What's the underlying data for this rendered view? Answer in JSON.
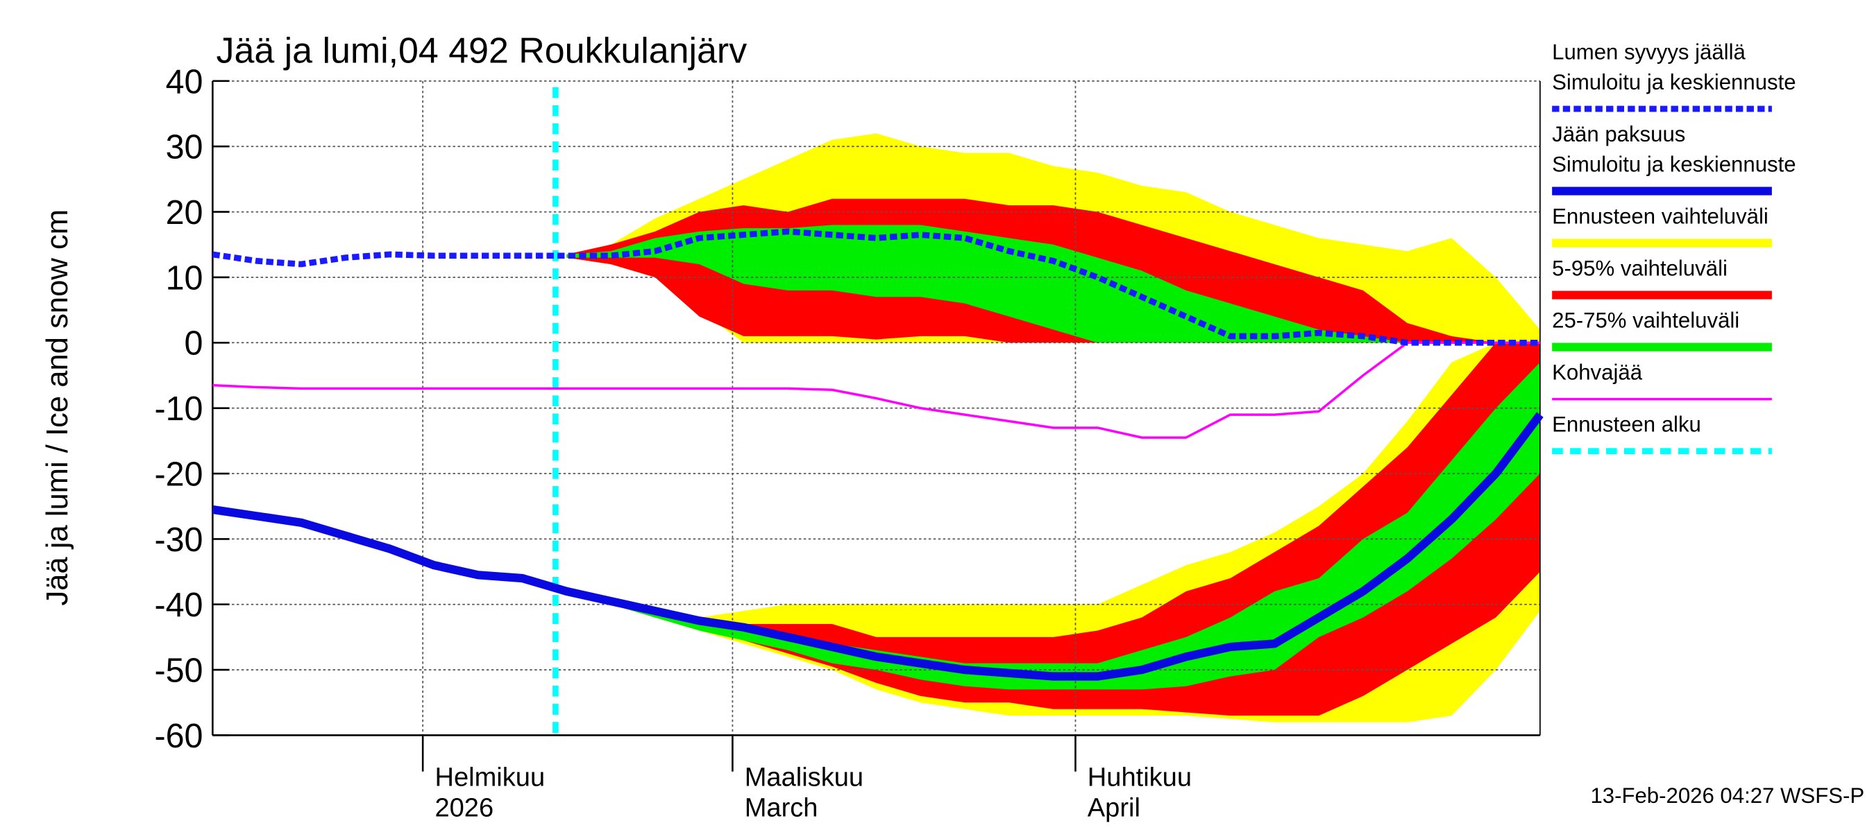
{
  "chart_data": {
    "type": "line",
    "title": "Jää ja lumi,04 492 Roukkulanjärv",
    "ylabel": "Jää ja lumi / Ice and snow    cm",
    "timestamp": "13-Feb-2026 04:27 WSFS-P",
    "categories": [
      null,
      null,
      null,
      null,
      null,
      null,
      null,
      null,
      null,
      null,
      null,
      null,
      null,
      null,
      null,
      null,
      null,
      null,
      null,
      null,
      null,
      null,
      null,
      null,
      null,
      null,
      null,
      null,
      null,
      null,
      null
    ],
    "xticks": [
      {
        "value": 4.75,
        "label": "Helmikuu\n2026"
      },
      {
        "value": 11.75,
        "label": "Maaliskuu\nMarch"
      },
      {
        "value": 19.5,
        "label": "Huhtikuu\nApril"
      }
    ],
    "ylim": [
      -60,
      40
    ],
    "yticks": [
      -60,
      -50,
      -40,
      -30,
      -20,
      -10,
      0,
      10,
      20,
      30,
      40
    ],
    "grid": true,
    "series": [
      {
        "name": "Lumen syvyys jäällä\nSimuloitu ja keskiennuste",
        "color": "#1a1aff",
        "style": "dashed",
        "values": [
          13.5,
          12.5,
          12,
          13,
          13.5,
          13.3,
          13.3,
          13.3,
          13.3,
          13.3,
          14,
          16,
          16.5,
          17,
          16.5,
          16,
          16.5,
          16,
          14,
          12.5,
          10,
          7,
          4,
          1,
          1,
          1.5,
          1,
          0,
          0,
          0,
          0
        ]
      },
      {
        "name": "Jään paksuus\nSimuloitu ja keskiennuste",
        "color": "#0a0ae0",
        "style": "solid",
        "values": [
          -25.5,
          -26.5,
          -27.5,
          -29.5,
          -31.5,
          -34,
          -35.5,
          -36,
          -38,
          -39.5,
          -41,
          -42.5,
          -43.5,
          -45,
          -46.5,
          -48,
          -49,
          -50,
          -50.5,
          -51,
          -51,
          -50,
          -48,
          -46.5,
          -46,
          -42,
          -38,
          -33,
          -27,
          -20,
          -11
        ]
      },
      {
        "name": "Kohvajää",
        "color": "#ff00ff",
        "style": "thin",
        "values": [
          -6.5,
          -6.8,
          -7,
          -7,
          -7,
          -7,
          -7,
          -7,
          -7,
          -7,
          -7,
          -7,
          -7,
          -7,
          -7.2,
          -8.5,
          -10,
          -11,
          -12,
          -13,
          -13,
          -14.5,
          -14.5,
          -11,
          -11,
          -10.5,
          -5,
          0,
          0,
          0,
          0
        ]
      }
    ],
    "bands": [
      {
        "name": "Ennusteen vaihteluväli",
        "color": "#ffff00",
        "snow_high": [
          null,
          null,
          null,
          null,
          null,
          null,
          null,
          null,
          13.5,
          15,
          19,
          22,
          25,
          28,
          31,
          32,
          30,
          29,
          29,
          27,
          26,
          24,
          23,
          20,
          18,
          16,
          15,
          14,
          16,
          10,
          2
        ],
        "snow_low": [
          null,
          null,
          null,
          null,
          null,
          null,
          null,
          null,
          13,
          12,
          10,
          5,
          0,
          0,
          0,
          0,
          0,
          0,
          0,
          0,
          0,
          0,
          0,
          0,
          0,
          0,
          0,
          0,
          0,
          0,
          0
        ],
        "ice_high": [
          null,
          null,
          null,
          null,
          null,
          null,
          null,
          null,
          -38,
          -39.5,
          -41,
          -42,
          -41,
          -40,
          -40,
          -40,
          -40,
          -40,
          -40,
          -40,
          -40,
          -37,
          -34,
          -32,
          -29,
          -25,
          -20,
          -12,
          -3,
          0,
          0
        ],
        "ice_low": [
          null,
          null,
          null,
          null,
          null,
          null,
          null,
          null,
          -38,
          -40,
          -42,
          -44,
          -46,
          -48,
          -50,
          -53,
          -55,
          -56,
          -57,
          -57,
          -57,
          -57,
          -57,
          -57.5,
          -58,
          -58,
          -58,
          -58,
          -57,
          -50,
          -41
        ]
      },
      {
        "name": "5-95% vaihteluväli",
        "color": "#ff0000",
        "snow_high": [
          null,
          null,
          null,
          null,
          null,
          null,
          null,
          null,
          13.5,
          15,
          17,
          20,
          21,
          20,
          22,
          22,
          22,
          22,
          21,
          21,
          20,
          18,
          16,
          14,
          12,
          10,
          8,
          3,
          1,
          0,
          0
        ],
        "snow_low": [
          null,
          null,
          null,
          null,
          null,
          null,
          null,
          null,
          13,
          12,
          10,
          4,
          1,
          1,
          1,
          0.5,
          1,
          1,
          0,
          0,
          0,
          0,
          0,
          0,
          0,
          0,
          0,
          0,
          0,
          0,
          0
        ],
        "ice_high": [
          null,
          null,
          null,
          null,
          null,
          null,
          null,
          null,
          -38,
          -39.5,
          -41,
          -42.5,
          -43,
          -43,
          -43,
          -45,
          -45,
          -45,
          -45,
          -45,
          -44,
          -42,
          -38,
          -36,
          -32,
          -28,
          -22,
          -16,
          -8,
          0,
          0
        ],
        "ice_low": [
          null,
          null,
          null,
          null,
          null,
          null,
          null,
          null,
          -38,
          -40,
          -42,
          -43.5,
          -45.5,
          -47.5,
          -49.5,
          -52,
          -54,
          -55,
          -55,
          -56,
          -56,
          -56,
          -56.5,
          -57,
          -57,
          -57,
          -54,
          -50,
          -46,
          -42,
          -35
        ]
      },
      {
        "name": "25-75% vaihteluväli",
        "color": "#00ee00",
        "snow_high": [
          null,
          null,
          null,
          null,
          null,
          null,
          null,
          null,
          13.5,
          14,
          16,
          17,
          17.5,
          17.5,
          18,
          18,
          18,
          17,
          16,
          15,
          13,
          11,
          8,
          6,
          4,
          2,
          1,
          0,
          0,
          0,
          0
        ],
        "snow_low": [
          null,
          null,
          null,
          null,
          null,
          null,
          null,
          null,
          13,
          13,
          13,
          12,
          9,
          8,
          8,
          7,
          7,
          6,
          4,
          2,
          0,
          0,
          0,
          0,
          0,
          0,
          0,
          0,
          0,
          0,
          0
        ],
        "ice_high": [
          null,
          null,
          null,
          null,
          null,
          null,
          null,
          null,
          -38,
          -39.5,
          -41.5,
          -43,
          -44,
          -45,
          -46,
          -47,
          -48,
          -49,
          -49,
          -49,
          -49,
          -47,
          -45,
          -42,
          -38,
          -36,
          -30,
          -26,
          -18,
          -10,
          -3
        ],
        "ice_low": [
          null,
          null,
          null,
          null,
          null,
          null,
          null,
          null,
          -38,
          -40,
          -42,
          -44,
          -45.5,
          -47,
          -49,
          -50,
          -51.5,
          -52.5,
          -53,
          -53,
          -53,
          -53,
          -52.5,
          -51,
          -50,
          -45,
          -42,
          -38,
          -33,
          -27,
          -20
        ]
      }
    ],
    "forecast_start": {
      "name": "Ennusteen alku",
      "color": "#00ffff",
      "x": 7.75
    }
  }
}
